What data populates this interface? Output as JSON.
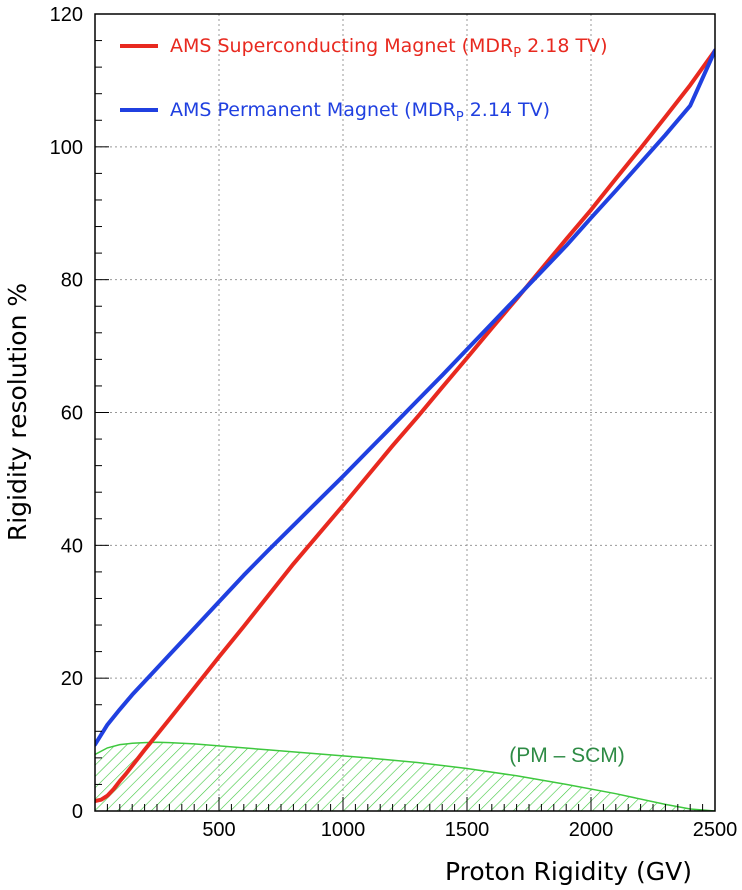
{
  "chart_data": {
    "type": "line",
    "title": "",
    "xlabel": "Proton Rigidity (GV)",
    "ylabel": "Rigidity resolution %",
    "xlim": [
      0,
      2500
    ],
    "ylim": [
      0,
      120
    ],
    "xticks": [
      500,
      1000,
      1500,
      2000,
      2500
    ],
    "yticks": [
      0,
      20,
      40,
      60,
      80,
      100,
      120
    ],
    "grid": true,
    "legend_position": "top-left",
    "series": [
      {
        "name": "AMS Superconducting Magnet",
        "mdr_prefix": "(MDR",
        "mdr_sub": "P",
        "mdr_value": " 2.18 TV)",
        "color": "#e8291f",
        "x": [
          0,
          25,
          50,
          75,
          100,
          125,
          150,
          175,
          200,
          250,
          300,
          400,
          500,
          600,
          700,
          800,
          900,
          1000,
          1100,
          1200,
          1300,
          1400,
          1500,
          1600,
          1700,
          1800,
          1900,
          2000,
          2100,
          2200,
          2300,
          2400,
          2500
        ],
        "y": [
          1.5,
          1.7,
          2.3,
          3.3,
          4.5,
          5.6,
          6.8,
          8.0,
          9.2,
          11.5,
          13.8,
          18.5,
          23.2,
          27.8,
          32.5,
          37.2,
          41.6,
          46.0,
          50.5,
          55.0,
          59.3,
          63.8,
          68.2,
          72.7,
          77.1,
          81.6,
          86.1,
          90.5,
          95.2,
          99.8,
          104.5,
          109.3,
          114.5
        ]
      },
      {
        "name": "AMS Permanent Magnet",
        "mdr_prefix": "(MDR",
        "mdr_sub": "P",
        "mdr_value": " 2.14 TV)",
        "color": "#2040e0",
        "x": [
          0,
          50,
          100,
          150,
          200,
          300,
          400,
          500,
          600,
          700,
          800,
          900,
          1000,
          1100,
          1200,
          1300,
          1400,
          1500,
          1600,
          1700,
          1800,
          1900,
          2000,
          2100,
          2200,
          2300,
          2400,
          2500
        ],
        "y": [
          10.0,
          13.0,
          15.3,
          17.5,
          19.5,
          23.5,
          27.5,
          31.5,
          35.5,
          39.3,
          43.0,
          46.7,
          50.4,
          54.2,
          58.0,
          61.8,
          65.6,
          69.5,
          73.4,
          77.3,
          81.2,
          85.1,
          89.3,
          93.4,
          97.6,
          101.8,
          106.2,
          114.5
        ]
      }
    ],
    "difference_area": {
      "label": "(PM – SCM)",
      "color": "#3ec83e",
      "label_color": "#2e8b45",
      "x": [
        0,
        50,
        100,
        150,
        200,
        250,
        300,
        400,
        500,
        700,
        900,
        1100,
        1300,
        1500,
        1700,
        1900,
        2100,
        2300,
        2400,
        2500
      ],
      "y": [
        8.5,
        9.5,
        10.0,
        10.2,
        10.3,
        10.35,
        10.3,
        10.1,
        9.8,
        9.2,
        8.6,
        8.0,
        7.3,
        6.4,
        5.3,
        4.0,
        2.6,
        1.0,
        0.3,
        0.0
      ]
    }
  }
}
